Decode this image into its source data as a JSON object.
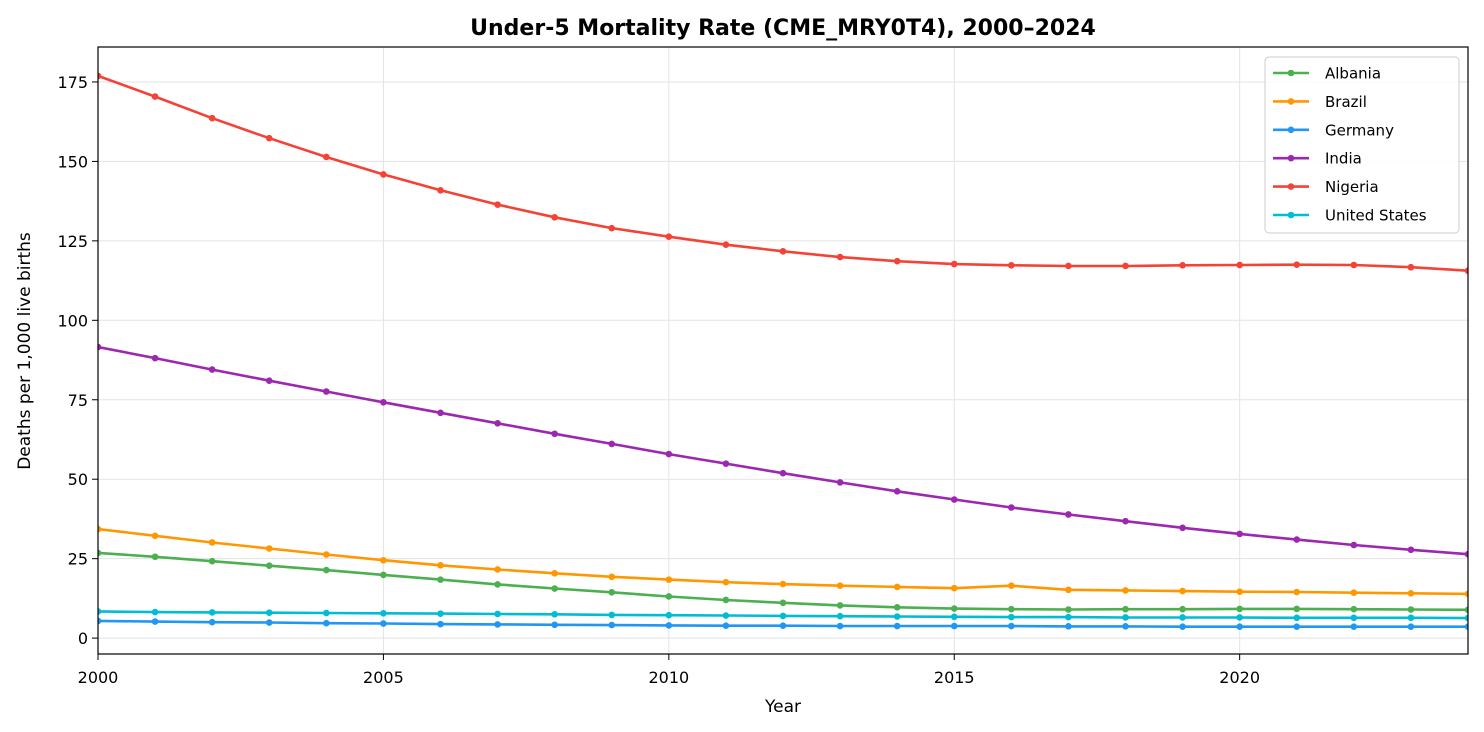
{
  "chart_data": {
    "type": "line",
    "title": "Under-5 Mortality Rate (CME_MRY0T4), 2000–2024",
    "xlabel": "Year",
    "ylabel": "Deaths per 1,000 live births",
    "xlim": [
      2000,
      2024
    ],
    "ylim": [
      -5,
      186
    ],
    "x_ticks": [
      2000,
      2005,
      2010,
      2015,
      2020
    ],
    "y_ticks": [
      0,
      25,
      50,
      75,
      100,
      125,
      150,
      175
    ],
    "grid": true,
    "legend_position": "top-right",
    "x": [
      2000,
      2001,
      2002,
      2003,
      2004,
      2005,
      2006,
      2007,
      2008,
      2009,
      2010,
      2011,
      2012,
      2013,
      2014,
      2015,
      2016,
      2017,
      2018,
      2019,
      2020,
      2021,
      2022,
      2023,
      2024
    ],
    "series": [
      {
        "name": "Albania",
        "color": "#4caf50",
        "values": [
          26.8,
          25.6,
          24.2,
          22.8,
          21.4,
          19.9,
          18.4,
          16.9,
          15.6,
          14.4,
          13.1,
          12.0,
          11.1,
          10.3,
          9.7,
          9.3,
          9.1,
          9.0,
          9.1,
          9.1,
          9.2,
          9.2,
          9.1,
          9.0,
          8.9
        ]
      },
      {
        "name": "Brazil",
        "color": "#ff9800",
        "values": [
          34.3,
          32.2,
          30.1,
          28.2,
          26.3,
          24.5,
          22.9,
          21.6,
          20.4,
          19.3,
          18.4,
          17.6,
          17.0,
          16.5,
          16.1,
          15.7,
          16.5,
          15.2,
          15.0,
          14.8,
          14.6,
          14.5,
          14.3,
          14.1,
          13.9
        ]
      },
      {
        "name": "Germany",
        "color": "#2196f3",
        "values": [
          5.4,
          5.2,
          5.0,
          4.9,
          4.7,
          4.6,
          4.4,
          4.3,
          4.2,
          4.1,
          4.0,
          3.9,
          3.9,
          3.8,
          3.8,
          3.8,
          3.8,
          3.7,
          3.7,
          3.6,
          3.6,
          3.6,
          3.6,
          3.6,
          3.6
        ]
      },
      {
        "name": "India",
        "color": "#9c27b0",
        "values": [
          91.6,
          88.1,
          84.5,
          81.0,
          77.6,
          74.2,
          70.9,
          67.6,
          64.3,
          61.1,
          57.9,
          54.9,
          51.9,
          49.0,
          46.2,
          43.6,
          41.1,
          38.9,
          36.8,
          34.7,
          32.8,
          31.0,
          29.3,
          27.8,
          26.4
        ]
      },
      {
        "name": "Nigeria",
        "color": "#f44336",
        "values": [
          176.9,
          170.4,
          163.6,
          157.3,
          151.4,
          145.9,
          140.9,
          136.4,
          132.4,
          129.0,
          126.3,
          123.8,
          121.7,
          119.9,
          118.6,
          117.7,
          117.3,
          117.1,
          117.1,
          117.3,
          117.4,
          117.5,
          117.4,
          116.7,
          115.6
        ]
      },
      {
        "name": "United States",
        "color": "#00bcd4",
        "values": [
          8.4,
          8.2,
          8.1,
          8.0,
          7.9,
          7.8,
          7.7,
          7.6,
          7.5,
          7.3,
          7.2,
          7.1,
          7.0,
          6.9,
          6.8,
          6.7,
          6.6,
          6.6,
          6.5,
          6.5,
          6.5,
          6.4,
          6.4,
          6.4,
          6.3
        ]
      }
    ]
  }
}
